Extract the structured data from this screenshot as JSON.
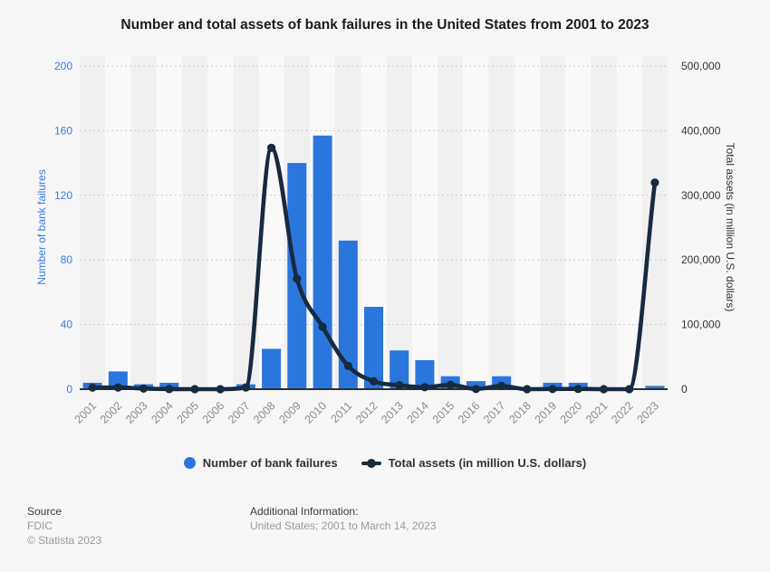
{
  "title": "Number and total assets of bank failures in the United States from 2001 to 2023",
  "chart_data": {
    "type": "bar",
    "subtype": "combo-bar-line-dual-axis",
    "title": "Number and total assets of bank failures in the United States from 2001 to 2023",
    "categories": [
      "2001",
      "2002",
      "2003",
      "2004",
      "2005",
      "2006",
      "2007",
      "2008",
      "2009",
      "2010",
      "2011",
      "2012",
      "2013",
      "2014",
      "2015",
      "2016",
      "2017",
      "2018",
      "2019",
      "2020",
      "2021",
      "2022",
      "2023"
    ],
    "series": [
      {
        "name": "Number of bank failures",
        "type": "bar",
        "axis": "left",
        "color": "#2b76dd",
        "values": [
          4,
          11,
          3,
          4,
          0,
          0,
          3,
          25,
          140,
          157,
          92,
          51,
          24,
          18,
          8,
          5,
          8,
          0,
          4,
          4,
          0,
          0,
          2
        ]
      },
      {
        "name": "Total assets (in million U.S. dollars)",
        "type": "line",
        "axis": "right",
        "color": "#162a40",
        "values": [
          2359,
          2705,
          1045,
          170,
          0,
          0,
          2615,
          373589,
          170909,
          96514,
          36012,
          12055,
          6101,
          3088,
          6727,
          277,
          5081,
          0,
          214,
          458,
          0,
          0,
          319781
        ]
      }
    ],
    "left_axis": {
      "label": "Number of bank failures",
      "range": [
        0,
        200
      ],
      "ticks": [
        0,
        40,
        80,
        120,
        160,
        200
      ],
      "tick_labels": [
        "0",
        "40",
        "80",
        "120",
        "160",
        "200"
      ],
      "tick_color": "#3a7be0"
    },
    "right_axis": {
      "label": "Total assets (in million U.S. dollars)",
      "range": [
        0,
        500000
      ],
      "ticks": [
        0,
        100000,
        200000,
        300000,
        400000,
        500000
      ],
      "tick_labels": [
        "0",
        "100,000",
        "200,000",
        "300,000",
        "400,000",
        "500,000"
      ],
      "tick_color": "#333333"
    },
    "x_tick_color": "#8c8c8c",
    "grid": "horizontal-dotted",
    "band_colors": [
      "#f0f0f1",
      "#f9f9fa"
    ],
    "legend_position": "bottom"
  },
  "legend": {
    "items": [
      {
        "label": "Number of bank failures",
        "marker": "circle",
        "color": "#2b76dd"
      },
      {
        "label": "Total assets (in million U.S. dollars)",
        "marker": "line-dot",
        "color": "#162a40"
      }
    ]
  },
  "footer": {
    "source_label": "Source",
    "source_value": "FDIC",
    "copyright": "© Statista 2023",
    "additional_label": "Additional Information:",
    "additional_value": "United States; 2001 to March 14, 2023"
  }
}
